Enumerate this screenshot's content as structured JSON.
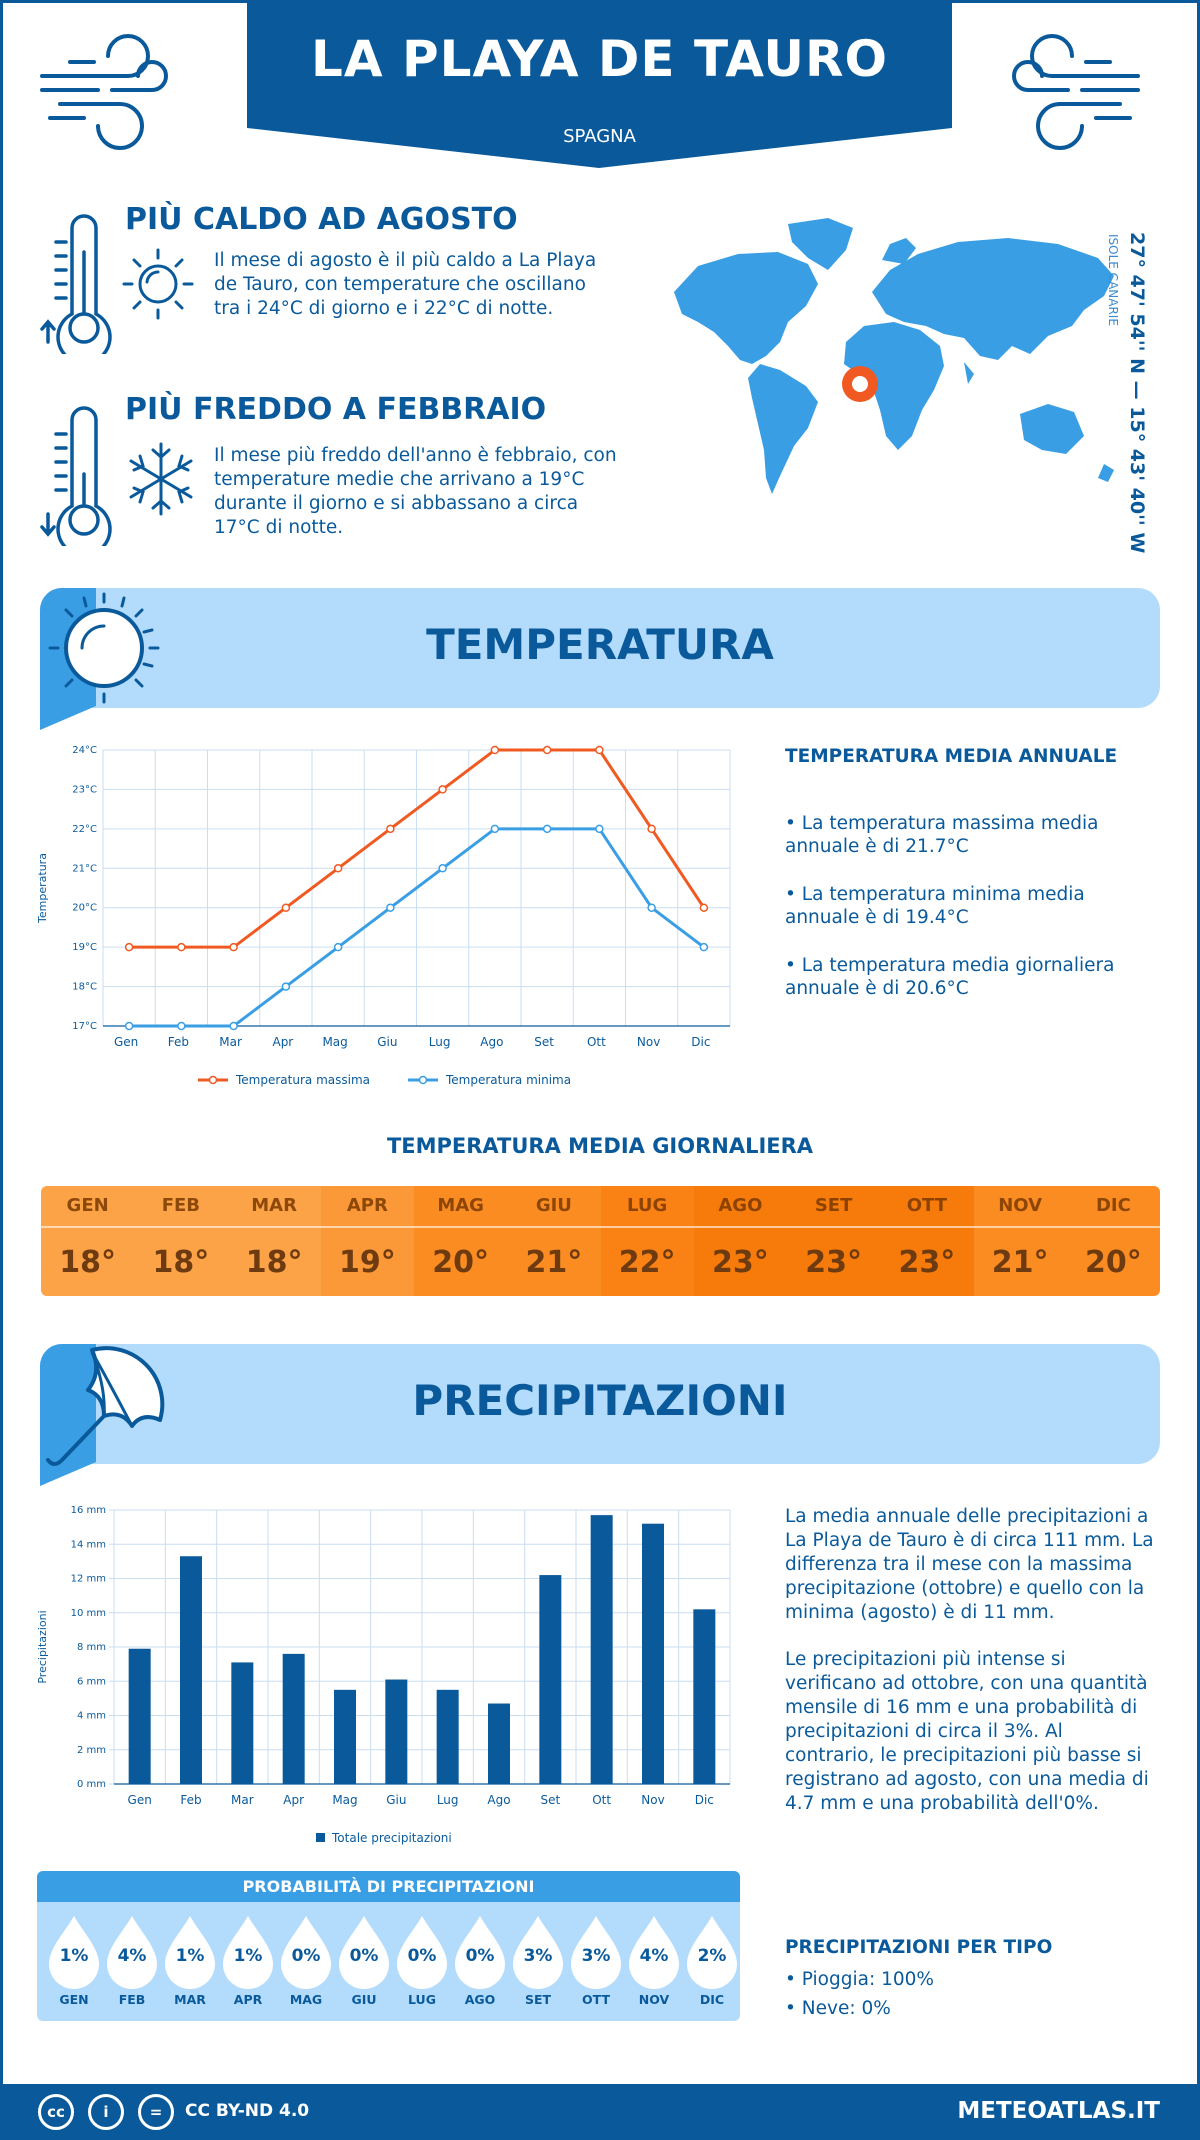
{
  "header": {
    "title": "LA PLAYA DE TAURO",
    "country": "SPAGNA"
  },
  "hottest": {
    "title": "PIÙ CALDO AD AGOSTO",
    "text": "Il mese di agosto è il più caldo a La Playa de Tauro, con temperature che oscillano tra i 24°C di giorno e i 22°C di notte."
  },
  "coldest": {
    "title": "PIÙ FREDDO A FEBBRAIO",
    "text": "Il mese più freddo dell'anno è febbraio, con temperature medie che arrivano a 19°C durante il giorno e si abbassano a circa 17°C di notte."
  },
  "location": {
    "coords": "27° 47' 54'' N — 15° 43' 40'' W",
    "region": "ISOLE CANARIE"
  },
  "temperature_section": {
    "title": "TEMPERATURA",
    "annual_title": "TEMPERATURA MEDIA ANNUALE",
    "bullets": [
      "• La temperatura massima media annuale è di 21.7°C",
      "• La temperatura minima media annuale è di 19.4°C",
      "• La temperatura media giornaliera annuale è di 20.6°C"
    ]
  },
  "daily": {
    "title": "TEMPERATURA MEDIA GIORNALIERA",
    "months": [
      "GEN",
      "FEB",
      "MAR",
      "APR",
      "MAG",
      "GIU",
      "LUG",
      "AGO",
      "SET",
      "OTT",
      "NOV",
      "DIC"
    ],
    "values": [
      "18°",
      "18°",
      "18°",
      "19°",
      "20°",
      "21°",
      "22°",
      "23°",
      "23°",
      "23°",
      "21°",
      "20°"
    ],
    "colors": [
      "#fca247",
      "#fca247",
      "#fca247",
      "#fb9837",
      "#fb8c22",
      "#fb8c22",
      "#fa8215",
      "#f77b0b",
      "#f77b0b",
      "#f77b0b",
      "#fb8c22",
      "#fb8c22"
    ]
  },
  "precip_section": {
    "title": "PRECIPITAZIONI",
    "text1": "La media annuale delle precipitazioni a La Playa de Tauro è di circa 111 mm. La differenza tra il mese con la massima precipitazione (ottobre) e quello con la minima (agosto) è di 11 mm.",
    "text2": "Le precipitazioni più intense si verificano ad ottobre, con una quantità mensile di 16 mm e una probabilità di precipitazioni di circa il 3%. Al contrario, le precipitazioni più basse si registrano ad agosto, con una media di 4.7 mm e una probabilità dell'0%.",
    "type_title": "PRECIPITAZIONI PER TIPO",
    "types": [
      "• Pioggia: 100%",
      "• Neve: 0%"
    ]
  },
  "probability": {
    "title": "PROBABILITÀ DI PRECIPITAZIONI",
    "months": [
      "GEN",
      "FEB",
      "MAR",
      "APR",
      "MAG",
      "GIU",
      "LUG",
      "AGO",
      "SET",
      "OTT",
      "NOV",
      "DIC"
    ],
    "values": [
      "1%",
      "4%",
      "1%",
      "1%",
      "0%",
      "0%",
      "0%",
      "0%",
      "3%",
      "3%",
      "4%",
      "2%"
    ]
  },
  "footer": {
    "license": "CC BY-ND 4.0",
    "site": "METEOATLAS.IT",
    "cc_icon": "cc",
    "by_icon": "i",
    "nd_icon": "="
  },
  "colors": {
    "brand": "#0a5a9b",
    "light": "#b3dcfc",
    "accent": "#3a9ee4",
    "max_line": "#f05a22",
    "min_line": "#3a9ee4",
    "map_marker": "#f05a22"
  },
  "chart_data": [
    {
      "type": "line",
      "ylabel": "Temperatura",
      "categories": [
        "Gen",
        "Feb",
        "Mar",
        "Apr",
        "Mag",
        "Giu",
        "Lug",
        "Ago",
        "Set",
        "Ott",
        "Nov",
        "Dic"
      ],
      "yticks": [
        "17°C",
        "18°C",
        "19°C",
        "20°C",
        "21°C",
        "22°C",
        "23°C",
        "24°C"
      ],
      "ylim": [
        17,
        24
      ],
      "grid": true,
      "legend": "bottom",
      "series": [
        {
          "name": "Temperatura massima",
          "values": [
            19,
            19,
            19,
            20,
            21,
            22,
            23,
            24,
            24,
            24,
            22,
            20
          ],
          "color": "#f05a22"
        },
        {
          "name": "Temperatura minima",
          "values": [
            17,
            17,
            17,
            18,
            19,
            20,
            21,
            22,
            22,
            22,
            20,
            19
          ],
          "color": "#3a9ee4"
        }
      ]
    },
    {
      "type": "bar",
      "ylabel": "Precipitazioni",
      "categories": [
        "Gen",
        "Feb",
        "Mar",
        "Apr",
        "Mag",
        "Giu",
        "Lug",
        "Ago",
        "Set",
        "Ott",
        "Nov",
        "Dic"
      ],
      "yticks": [
        "0 mm",
        "2 mm",
        "4 mm",
        "6 mm",
        "8 mm",
        "10 mm",
        "12 mm",
        "14 mm",
        "16 mm"
      ],
      "ylim": [
        0,
        16
      ],
      "grid": true,
      "legend": "bottom",
      "series": [
        {
          "name": "Totale precipitazioni",
          "values": [
            7.9,
            13.3,
            7.1,
            7.6,
            5.5,
            6.1,
            5.5,
            4.7,
            12.2,
            15.7,
            15.2,
            10.2
          ],
          "color": "#0a5a9b"
        }
      ]
    }
  ]
}
